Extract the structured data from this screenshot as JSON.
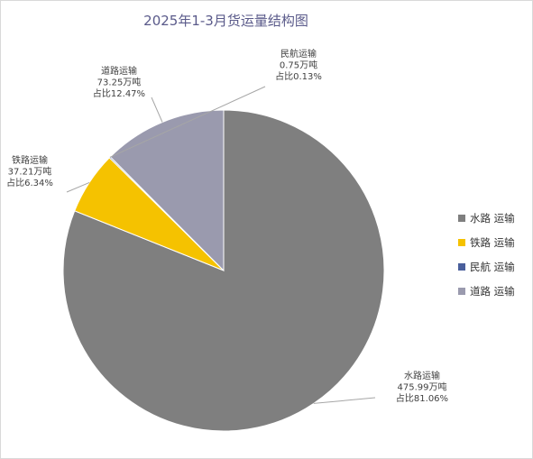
{
  "chart_data": {
    "type": "pie",
    "title": "2025年1-3月货运量结构图",
    "slices": [
      {
        "name": "水路运输",
        "value_text": "475.99万吨",
        "value": 475.99,
        "share_text": "占比81.06%",
        "share": 81.06,
        "color": "#7f7f7f",
        "legend": "水路 运输"
      },
      {
        "name": "铁路运输",
        "value_text": "37.21万吨",
        "value": 37.21,
        "share_text": "占比6.34%",
        "share": 6.34,
        "color": "#f5c200",
        "legend": "铁路 运输"
      },
      {
        "name": "民航运输",
        "value_text": "0.75万吨",
        "value": 0.75,
        "share_text": "占比0.13%",
        "share": 0.13,
        "color": "#4a5f9c",
        "legend": "民航 运输"
      },
      {
        "name": "道路运输",
        "value_text": "73.25万吨",
        "value": 73.25,
        "share_text": "占比12.47%",
        "share": 12.47,
        "color": "#9a9aae",
        "legend": "道路 运输"
      }
    ],
    "start_angle_deg": 0,
    "direction": "clockwise",
    "legend_position": "right"
  }
}
